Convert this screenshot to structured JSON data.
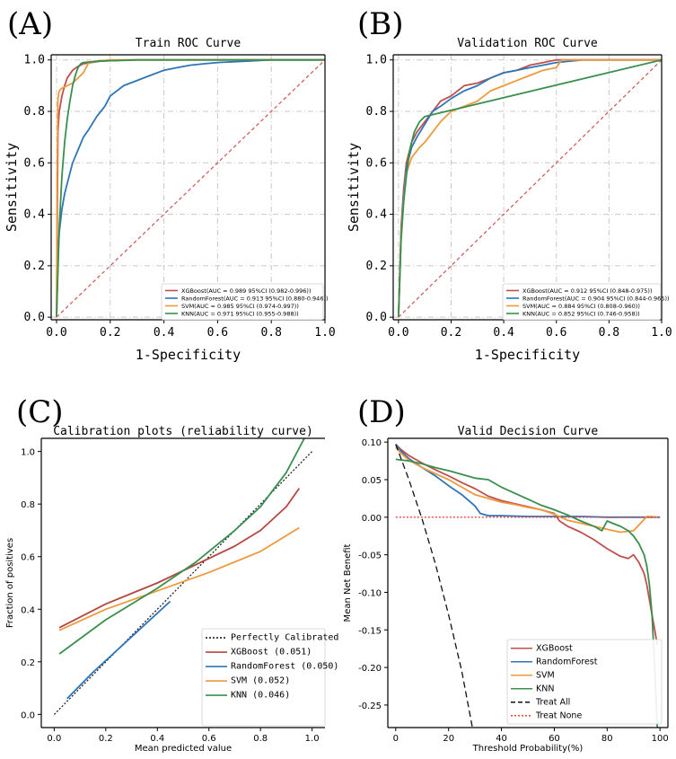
{
  "chart_data": [
    {
      "id": "A",
      "type": "line",
      "panel_label": "(A)",
      "title": "Train ROC Curve",
      "xlabel": "1-Specificity",
      "ylabel": "Sensitivity",
      "xlim": [
        -0.02,
        1.0
      ],
      "ylim": [
        -0.01,
        1.02
      ],
      "xticks": [
        0.0,
        0.2,
        0.4,
        0.6,
        0.8,
        1.0
      ],
      "yticks": [
        0.0,
        0.2,
        0.4,
        0.6,
        0.8,
        1.0
      ],
      "xtick_labels": [
        "0.0",
        "0.2",
        "0.4",
        "0.6",
        "0.8",
        "1.0"
      ],
      "ytick_labels": [
        "0.0",
        "0.2",
        "0.4",
        "0.6",
        "0.8",
        "1.0"
      ],
      "grid": true,
      "legend_position": "bottom-right",
      "series": [
        {
          "name": "XGBoost(AUC = 0.989 95%CI (0.982-0.996))",
          "color": "#c0504d",
          "x": [
            0,
            0.005,
            0.01,
            0.02,
            0.03,
            0.04,
            0.06,
            0.08,
            0.1,
            0.13,
            0.16,
            0.2,
            0.3,
            0.5,
            1.0
          ],
          "y": [
            0,
            0.72,
            0.8,
            0.86,
            0.9,
            0.93,
            0.96,
            0.975,
            0.985,
            0.99,
            0.995,
            0.998,
            1.0,
            1.0,
            1.0
          ]
        },
        {
          "name": "RandomForest(AUC = 0.913 95%CI (0.880-0.946))",
          "color": "#2e75b6",
          "x": [
            0,
            0.005,
            0.01,
            0.02,
            0.03,
            0.04,
            0.05,
            0.06,
            0.08,
            0.1,
            0.12,
            0.15,
            0.18,
            0.2,
            0.25,
            0.3,
            0.35,
            0.4,
            0.45,
            0.5,
            0.55,
            0.6,
            0.7,
            0.8,
            1.0
          ],
          "y": [
            0,
            0.22,
            0.33,
            0.42,
            0.48,
            0.52,
            0.56,
            0.6,
            0.65,
            0.7,
            0.73,
            0.78,
            0.82,
            0.86,
            0.9,
            0.92,
            0.94,
            0.96,
            0.97,
            0.98,
            0.985,
            0.99,
            0.995,
            1.0,
            1.0
          ]
        },
        {
          "name": "SVM(AUC = 0.985 95%CI (0.974-0.997))",
          "color": "#ed9a3e",
          "x": [
            0,
            0.002,
            0.005,
            0.01,
            0.02,
            0.04,
            0.06,
            0.08,
            0.1,
            0.11,
            0.12,
            0.15,
            0.2,
            0.4,
            1.0
          ],
          "y": [
            0,
            0.55,
            0.85,
            0.88,
            0.89,
            0.9,
            0.91,
            0.93,
            0.95,
            0.97,
            0.99,
            0.995,
            1.0,
            1.0,
            1.0
          ]
        },
        {
          "name": "KNN(AUC = 0.971 95%CI (0.955-0.988))",
          "color": "#3a8f4f",
          "x": [
            0,
            0.01,
            0.02,
            0.03,
            0.04,
            0.05,
            0.06,
            0.07,
            0.08,
            0.09,
            0.1,
            0.15,
            0.3,
            0.6,
            1.0
          ],
          "y": [
            0,
            0.35,
            0.55,
            0.68,
            0.77,
            0.84,
            0.9,
            0.94,
            0.97,
            0.985,
            0.99,
            0.995,
            1.0,
            1.0,
            1.0
          ]
        },
        {
          "name": "chance",
          "color": "#d0605a",
          "dashed": true,
          "in_legend": false,
          "x": [
            0,
            1.0
          ],
          "y": [
            0,
            1.0
          ]
        }
      ]
    },
    {
      "id": "B",
      "type": "line",
      "panel_label": "(B)",
      "title": "Validation ROC Curve",
      "xlabel": "1-Specificity",
      "ylabel": "Sensitivity",
      "xlim": [
        -0.02,
        1.0
      ],
      "ylim": [
        -0.01,
        1.02
      ],
      "xticks": [
        0.0,
        0.2,
        0.4,
        0.6,
        0.8,
        1.0
      ],
      "yticks": [
        0.0,
        0.2,
        0.4,
        0.6,
        0.8,
        1.0
      ],
      "xtick_labels": [
        "0.0",
        "0.2",
        "0.4",
        "0.6",
        "0.8",
        "1.0"
      ],
      "ytick_labels": [
        "0.0",
        "0.2",
        "0.4",
        "0.6",
        "0.8",
        "1.0"
      ],
      "grid": true,
      "legend_position": "bottom-right",
      "series": [
        {
          "name": "XGBoost(AUC = 0.912 95%CI (0.848-0.975))",
          "color": "#c0504d",
          "x": [
            0,
            0.01,
            0.02,
            0.03,
            0.05,
            0.07,
            0.1,
            0.13,
            0.16,
            0.2,
            0.25,
            0.3,
            0.35,
            0.4,
            0.45,
            0.5,
            0.55,
            0.6,
            0.7,
            1.0
          ],
          "y": [
            0,
            0.35,
            0.5,
            0.6,
            0.68,
            0.72,
            0.76,
            0.8,
            0.84,
            0.86,
            0.9,
            0.91,
            0.93,
            0.95,
            0.96,
            0.98,
            0.99,
            1.0,
            1.0,
            1.0
          ]
        },
        {
          "name": "RandomForest(AUC = 0.904 95%CI (0.844-0.965))",
          "color": "#2e75b6",
          "x": [
            0,
            0.01,
            0.02,
            0.03,
            0.05,
            0.07,
            0.1,
            0.13,
            0.16,
            0.2,
            0.25,
            0.3,
            0.35,
            0.4,
            0.45,
            0.5,
            0.55,
            0.6,
            0.7,
            1.0
          ],
          "y": [
            0,
            0.33,
            0.48,
            0.58,
            0.66,
            0.7,
            0.75,
            0.8,
            0.82,
            0.85,
            0.88,
            0.9,
            0.93,
            0.95,
            0.96,
            0.97,
            0.98,
            0.99,
            1.0,
            1.0
          ]
        },
        {
          "name": "SVM(AUC = 0.884 95%CI (0.808-0.960))",
          "color": "#ed9a3e",
          "x": [
            0,
            0.01,
            0.02,
            0.03,
            0.05,
            0.08,
            0.1,
            0.13,
            0.16,
            0.2,
            0.25,
            0.3,
            0.35,
            0.4,
            0.45,
            0.5,
            0.55,
            0.6,
            0.62,
            0.7,
            1.0
          ],
          "y": [
            0,
            0.32,
            0.46,
            0.56,
            0.62,
            0.66,
            0.68,
            0.72,
            0.76,
            0.8,
            0.82,
            0.84,
            0.88,
            0.9,
            0.92,
            0.94,
            0.96,
            0.97,
            1.0,
            1.0,
            1.0
          ]
        },
        {
          "name": "KNN(AUC = 0.852 95%CI (0.746-0.958))",
          "color": "#3a8f4f",
          "x": [
            0,
            0.01,
            0.02,
            0.03,
            0.04,
            0.05,
            0.06,
            0.08,
            0.1,
            1.0
          ],
          "y": [
            0,
            0.3,
            0.45,
            0.55,
            0.63,
            0.68,
            0.72,
            0.76,
            0.78,
            1.0
          ]
        },
        {
          "name": "chance",
          "color": "#d0605a",
          "dashed": true,
          "in_legend": false,
          "x": [
            0,
            1.0
          ],
          "y": [
            0,
            1.0
          ]
        }
      ]
    },
    {
      "id": "C",
      "type": "line",
      "panel_label": "(C)",
      "title": "Calibration plots  (reliability curve)",
      "xlabel": "Mean predicted value",
      "ylabel": "Fraction of positives",
      "xlim": [
        -0.05,
        1.05
      ],
      "ylim": [
        -0.05,
        1.05
      ],
      "xticks": [
        0.0,
        0.2,
        0.4,
        0.6,
        0.8,
        1.0
      ],
      "yticks": [
        0.0,
        0.2,
        0.4,
        0.6,
        0.8,
        1.0
      ],
      "xtick_labels": [
        "0.0",
        "0.2",
        "0.4",
        "0.6",
        "0.8",
        "1.0"
      ],
      "ytick_labels": [
        "0.0",
        "0.2",
        "0.4",
        "0.6",
        "0.8",
        "1.0"
      ],
      "grid": false,
      "legend_position": "bottom-right",
      "series": [
        {
          "name": "Perfectly Calibrated",
          "color": "#222222",
          "dotted": true,
          "x": [
            0,
            1.0
          ],
          "y": [
            0,
            1.0
          ]
        },
        {
          "name": "XGBoost (0.051)",
          "color": "#b5473f",
          "x": [
            0.02,
            0.2,
            0.4,
            0.55,
            0.7,
            0.8,
            0.9,
            0.95
          ],
          "y": [
            0.33,
            0.42,
            0.5,
            0.57,
            0.64,
            0.7,
            0.79,
            0.86
          ]
        },
        {
          "name": "RandomForest (0.050)",
          "color": "#2e75b6",
          "x": [
            0.05,
            0.15,
            0.25,
            0.35,
            0.45
          ],
          "y": [
            0.06,
            0.16,
            0.25,
            0.34,
            0.43
          ]
        },
        {
          "name": "SVM (0.052)",
          "color": "#ed9a3e",
          "x": [
            0.02,
            0.2,
            0.4,
            0.6,
            0.8,
            0.95
          ],
          "y": [
            0.32,
            0.4,
            0.47,
            0.54,
            0.62,
            0.71
          ]
        },
        {
          "name": "KNN (0.046)",
          "color": "#3a8f4f",
          "x": [
            0.02,
            0.2,
            0.4,
            0.55,
            0.7,
            0.8,
            0.9,
            0.97
          ],
          "y": [
            0.23,
            0.36,
            0.48,
            0.58,
            0.7,
            0.79,
            0.92,
            1.05
          ]
        }
      ]
    },
    {
      "id": "D",
      "type": "line",
      "panel_label": "(D)",
      "title": "Valid Decision Curve",
      "xlabel": "Threshold Probability(%)",
      "ylabel": "Mean Net Benefit",
      "xlim": [
        -3,
        103
      ],
      "ylim": [
        -0.28,
        0.105
      ],
      "xticks": [
        0,
        20,
        40,
        60,
        80,
        100
      ],
      "yticks": [
        0.1,
        0.05,
        0.0,
        -0.05,
        -0.1,
        -0.15,
        -0.2,
        -0.25
      ],
      "xtick_labels": [
        "0",
        "20",
        "40",
        "60",
        "80",
        "100"
      ],
      "ytick_labels": [
        "0.10",
        "0.05",
        "0.00",
        "-0.05",
        "-0.10",
        "-0.15",
        "-0.20",
        "-0.25"
      ],
      "grid": false,
      "legend_position": "bottom-right",
      "series": [
        {
          "name": "XGBoost",
          "color": "#c0504d",
          "x": [
            0,
            2,
            5,
            10,
            15,
            20,
            25,
            30,
            35,
            40,
            45,
            50,
            55,
            60,
            62,
            65,
            70,
            75,
            80,
            85,
            88,
            90,
            92,
            94,
            95,
            96,
            97,
            98,
            99
          ],
          "y": [
            0.097,
            0.09,
            0.082,
            0.072,
            0.063,
            0.055,
            0.046,
            0.038,
            0.028,
            0.022,
            0.018,
            0.014,
            0.01,
            0.005,
            -0.005,
            -0.012,
            -0.02,
            -0.03,
            -0.042,
            -0.052,
            -0.055,
            -0.05,
            -0.06,
            -0.075,
            -0.09,
            -0.11,
            -0.13,
            -0.15,
            -0.17
          ]
        },
        {
          "name": "RandomForest",
          "color": "#2e75b6",
          "x": [
            0,
            2,
            5,
            10,
            15,
            20,
            25,
            30,
            32,
            35,
            40,
            50,
            60,
            70,
            80,
            90,
            100
          ],
          "y": [
            0.097,
            0.088,
            0.078,
            0.066,
            0.055,
            0.042,
            0.03,
            0.015,
            0.005,
            0.002,
            0.002,
            0.001,
            0.001,
            0.001,
            0.0,
            0.0,
            0.0
          ]
        },
        {
          "name": "SVM",
          "color": "#ed9a3e",
          "x": [
            0,
            2,
            5,
            10,
            15,
            20,
            25,
            30,
            35,
            40,
            45,
            50,
            55,
            60,
            65,
            70,
            75,
            80,
            85,
            90,
            95,
            97,
            99
          ],
          "y": [
            0.093,
            0.085,
            0.076,
            0.066,
            0.058,
            0.05,
            0.04,
            0.03,
            0.025,
            0.02,
            0.017,
            0.013,
            0.01,
            0.004,
            -0.004,
            -0.008,
            -0.012,
            -0.016,
            -0.02,
            -0.018,
            0.001,
            0.001,
            0.0
          ]
        },
        {
          "name": "KNN",
          "color": "#3a8f4f",
          "x": [
            0,
            5,
            10,
            15,
            20,
            25,
            30,
            35,
            40,
            45,
            50,
            55,
            60,
            65,
            70,
            75,
            78,
            80,
            82,
            85,
            88,
            90,
            92,
            94,
            95,
            96,
            97,
            98,
            99
          ],
          "y": [
            0.077,
            0.075,
            0.071,
            0.066,
            0.062,
            0.057,
            0.052,
            0.05,
            0.04,
            0.032,
            0.024,
            0.016,
            0.01,
            0.003,
            -0.005,
            -0.012,
            -0.018,
            -0.005,
            -0.008,
            -0.012,
            -0.018,
            -0.025,
            -0.035,
            -0.05,
            -0.065,
            -0.09,
            -0.13,
            -0.2,
            -0.28
          ]
        },
        {
          "name": "Treat All",
          "color": "#111111",
          "dashed": true,
          "x": [
            0,
            5,
            10,
            15,
            20,
            25,
            29
          ],
          "y": [
            0.097,
            0.05,
            -0.003,
            -0.062,
            -0.13,
            -0.205,
            -0.28
          ]
        },
        {
          "name": "Treat None",
          "color": "#e8403a",
          "dotted": true,
          "x": [
            0,
            100
          ],
          "y": [
            0,
            0
          ]
        }
      ]
    }
  ]
}
